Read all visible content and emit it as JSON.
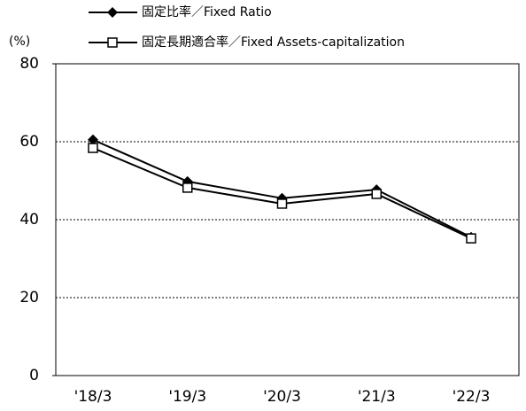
{
  "chart_data": {
    "type": "line",
    "y_unit": "(%)",
    "categories": [
      "'18/3",
      "'19/3",
      "'20/3",
      "'21/3",
      "'22/3"
    ],
    "series": [
      {
        "name": "固定比率／Fixed Ratio",
        "color": "#000000",
        "marker": "diamond",
        "values": [
          60.5,
          49.8,
          45.5,
          47.7,
          35.5
        ]
      },
      {
        "name": "固定長期適合率／Fixed Assets-capitalization",
        "color": "#000000",
        "marker": "square",
        "values": [
          58.4,
          48.2,
          44.1,
          46.6,
          35.2
        ]
      }
    ],
    "ylim": [
      0,
      80
    ],
    "yticks": [
      0,
      20,
      40,
      60,
      80
    ],
    "grid": true
  }
}
